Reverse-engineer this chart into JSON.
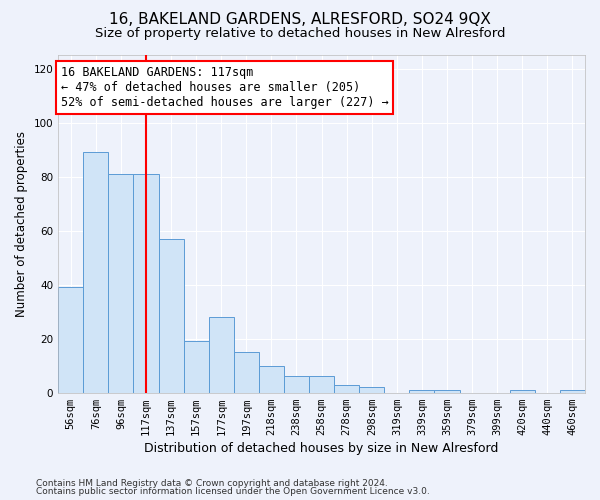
{
  "title": "16, BAKELAND GARDENS, ALRESFORD, SO24 9QX",
  "subtitle": "Size of property relative to detached houses in New Alresford",
  "xlabel": "Distribution of detached houses by size in New Alresford",
  "ylabel": "Number of detached properties",
  "footer1": "Contains HM Land Registry data © Crown copyright and database right 2024.",
  "footer2": "Contains public sector information licensed under the Open Government Licence v3.0.",
  "categories": [
    "56sqm",
    "76sqm",
    "96sqm",
    "117sqm",
    "137sqm",
    "157sqm",
    "177sqm",
    "197sqm",
    "218sqm",
    "238sqm",
    "258sqm",
    "278sqm",
    "298sqm",
    "319sqm",
    "339sqm",
    "359sqm",
    "379sqm",
    "399sqm",
    "420sqm",
    "440sqm",
    "460sqm"
  ],
  "values": [
    39,
    89,
    81,
    81,
    57,
    19,
    28,
    15,
    10,
    6,
    6,
    3,
    2,
    0,
    1,
    1,
    0,
    0,
    1,
    0,
    1
  ],
  "bar_color": "#d0e4f7",
  "bar_edge_color": "#5b9bd5",
  "vline_x": 3,
  "vline_color": "red",
  "annotation_line1": "16 BAKELAND GARDENS: 117sqm",
  "annotation_line2": "← 47% of detached houses are smaller (205)",
  "annotation_line3": "52% of semi-detached houses are larger (227) →",
  "annotation_box_color": "white",
  "annotation_box_edge": "red",
  "ylim": [
    0,
    125
  ],
  "yticks": [
    0,
    20,
    40,
    60,
    80,
    100,
    120
  ],
  "background_color": "#eef2fb",
  "grid_color": "#ffffff",
  "title_fontsize": 11,
  "subtitle_fontsize": 9.5,
  "xlabel_fontsize": 9,
  "ylabel_fontsize": 8.5,
  "tick_fontsize": 7.5,
  "annotation_fontsize": 8.5,
  "footer_fontsize": 6.5
}
